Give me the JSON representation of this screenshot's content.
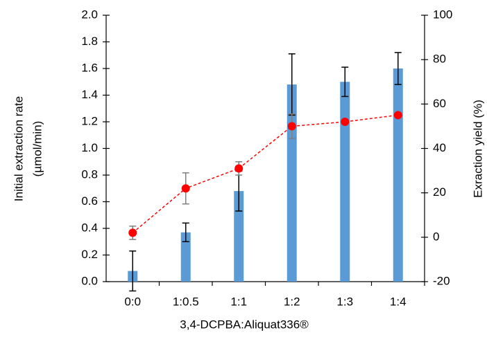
{
  "chart_data": {
    "type": "bar",
    "categories": [
      "0:0",
      "1:0.5",
      "1:1",
      "1:2",
      "1:3",
      "1:4"
    ],
    "xlabel": "3,4-DCPBA:Aliquat336®",
    "ylabel": [
      "Initial extraction rate",
      "(µmol/min)"
    ],
    "y2label": "Exraction yield (%)",
    "ylim": [
      0,
      2
    ],
    "yticks": [
      {
        "value": 0,
        "label": "0.0"
      },
      0.2,
      0.4,
      0.6,
      0.8,
      {
        "value": 1,
        "label": "1.0"
      },
      1.2,
      1.4,
      1.6,
      1.8,
      {
        "value": 2,
        "label": "2.0"
      }
    ],
    "y2lim": [
      -20,
      100
    ],
    "y2ticks": [
      -20,
      0,
      20,
      40,
      60,
      80,
      100
    ],
    "series": [
      {
        "type": "bar",
        "color": "#5b9bd5",
        "error_color": "#000000",
        "values": [
          0.08,
          0.37,
          0.68,
          1.48,
          1.5,
          1.6
        ],
        "errors": [
          0.15,
          0.07,
          0.15,
          0.23,
          0.11,
          0.12
        ]
      },
      {
        "type": "line",
        "axis": "y2",
        "color": "#ff0000",
        "error_color": "#7f7f7f",
        "dashed": true,
        "values": [
          2,
          22,
          31,
          50,
          52,
          55
        ],
        "errors": [
          3,
          7,
          3,
          5.5,
          null,
          null
        ]
      }
    ]
  }
}
